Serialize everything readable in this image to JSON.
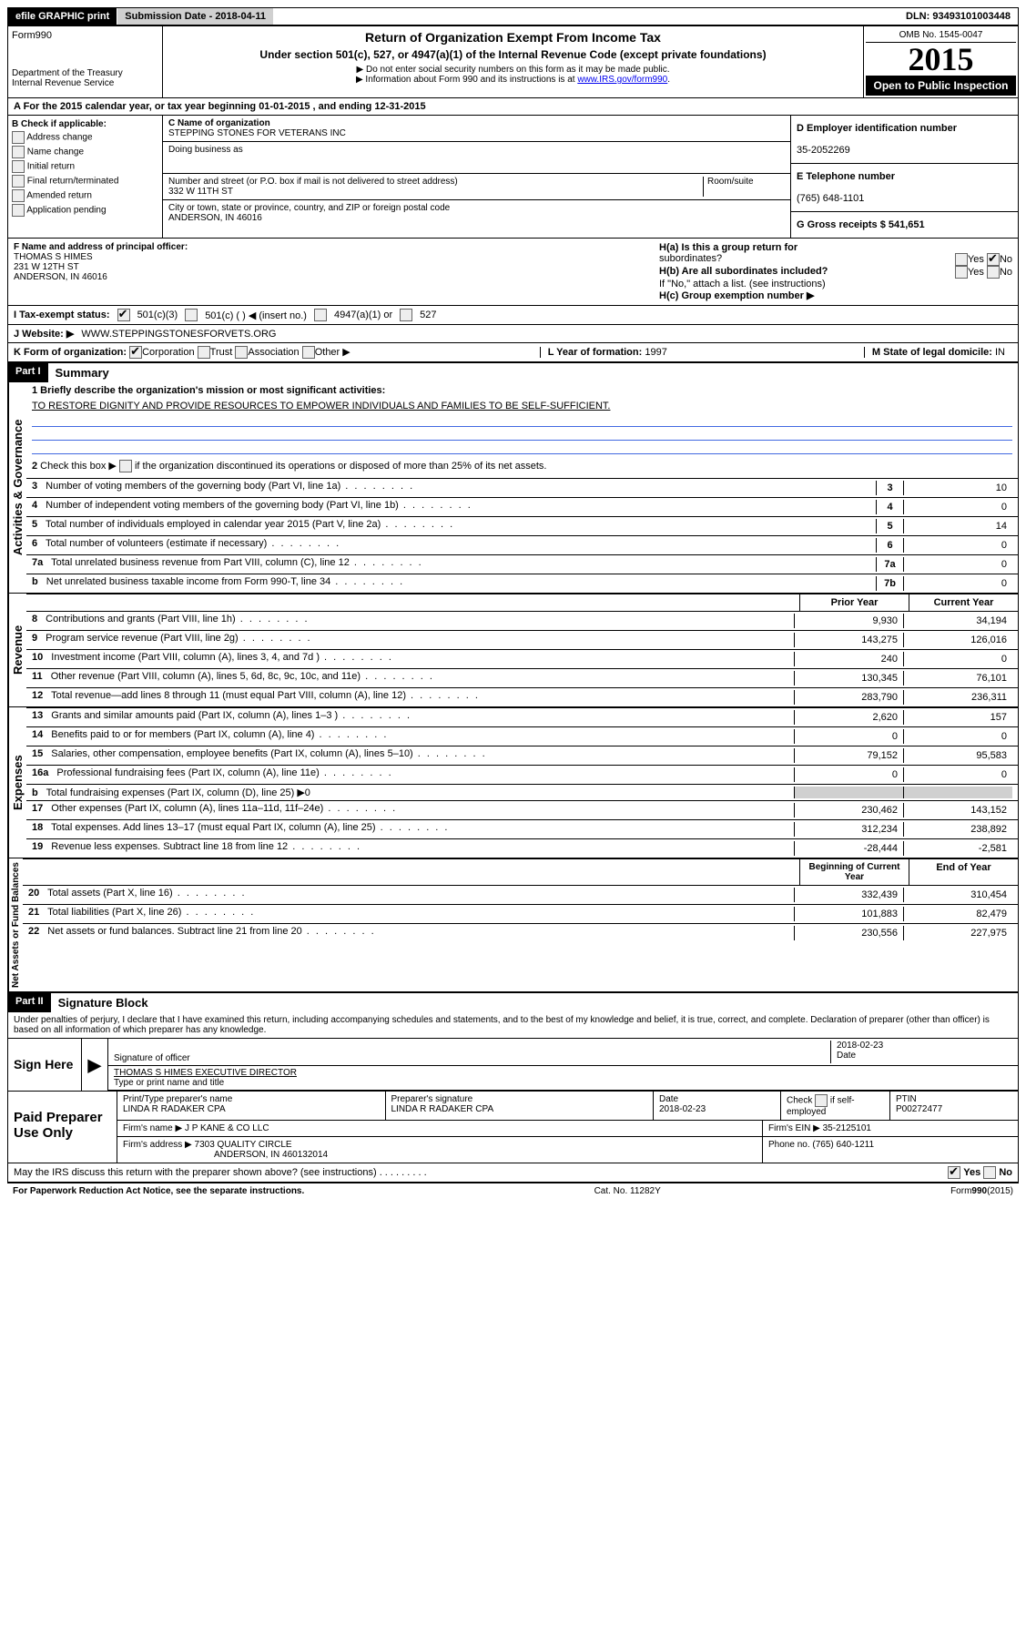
{
  "header": {
    "efile": "efile GRAPHIC print",
    "submission": "Submission Date - 2018-04-11",
    "dln": "DLN: 93493101003448"
  },
  "top": {
    "form": "Form990",
    "title": "Return of Organization Exempt From Income Tax",
    "subtitle": "Under section 501(c), 527, or 4947(a)(1) of the Internal Revenue Code (except private foundations)",
    "note1": "▶ Do not enter social security numbers on this form as it may be made public.",
    "note2": "▶ Information about Form 990 and its instructions is at ",
    "note2link": "www.IRS.gov/form990",
    "dept": "Department of the Treasury",
    "irs": "Internal Revenue Service",
    "omb": "OMB No. 1545-0047",
    "year": "2015",
    "open": "Open to Public Inspection"
  },
  "sectionA": "A  For the 2015 calendar year, or tax year beginning 01-01-2015   , and ending 12-31-2015",
  "sectionB": {
    "check_label": "B Check if applicable:",
    "addr_change": "Address change",
    "name_change": "Name change",
    "initial": "Initial return",
    "final": "Final return/terminated",
    "amended": "Amended return",
    "app_pending": "Application pending",
    "c_name_label": "C Name of organization",
    "c_name": "STEPPING STONES FOR VETERANS INC",
    "dba_label": "Doing business as",
    "street_label": "Number and street (or P.O. box if mail is not delivered to street address)",
    "room_label": "Room/suite",
    "street": "332 W 11TH ST",
    "city_label": "City or town, state or province, country, and ZIP or foreign postal code",
    "city": "ANDERSON, IN  46016",
    "d_ein_label": "D Employer identification number",
    "d_ein": "35-2052269",
    "e_phone_label": "E Telephone number",
    "e_phone": "(765) 648-1101",
    "g_gross": "G Gross receipts $ 541,651"
  },
  "sectionF": {
    "f_label": "F  Name and address of principal officer:",
    "f_name": "THOMAS S HIMES",
    "f_street": "231 W 12TH ST",
    "f_city": "ANDERSON, IN  46016",
    "ha": "H(a)  Is this a group return for",
    "ha2": "subordinates?",
    "hb": "H(b)  Are all subordinates included?",
    "hb_note": "If \"No,\" attach a list. (see instructions)",
    "hc": "H(c)  Group exemption number ▶",
    "yes": "Yes",
    "no": "No"
  },
  "lineI": {
    "label": "I  Tax-exempt status:",
    "opt1": "501(c)(3)",
    "opt2": "501(c) (   ) ◀ (insert no.)",
    "opt3": "4947(a)(1) or",
    "opt4": "527"
  },
  "lineJ": {
    "label": "J  Website: ▶",
    "value": "WWW.STEPPINGSTONESFORVETS.ORG"
  },
  "lineK": {
    "label": "K Form of organization:",
    "corp": "Corporation",
    "trust": "Trust",
    "assoc": "Association",
    "other": "Other ▶",
    "l_label": "L Year of formation:",
    "l_val": "1997",
    "m_label": "M State of legal domicile:",
    "m_val": "IN"
  },
  "part1": {
    "header": "Part I",
    "title": "Summary",
    "line1_label": "1 Briefly describe the organization's mission or most significant activities:",
    "line1_text": "TO RESTORE DIGNITY AND PROVIDE RESOURCES TO EMPOWER INDIVIDUALS AND FAMILIES TO BE SELF-SUFFICIENT.",
    "line2": "2  Check this box ▶       if the organization discontinued its operations or disposed of more than 25% of its net assets.",
    "side1": "Activities & Governance",
    "side2": "Revenue",
    "side3": "Expenses",
    "side4": "Net Assets or Fund Balances",
    "rows_gov": [
      {
        "n": "3",
        "t": "Number of voting members of the governing body (Part VI, line 1a)",
        "rn": "3",
        "v": "10"
      },
      {
        "n": "4",
        "t": "Number of independent voting members of the governing body (Part VI, line 1b)",
        "rn": "4",
        "v": "0"
      },
      {
        "n": "5",
        "t": "Total number of individuals employed in calendar year 2015 (Part V, line 2a)",
        "rn": "5",
        "v": "14"
      },
      {
        "n": "6",
        "t": "Total number of volunteers (estimate if necessary)",
        "rn": "6",
        "v": "0"
      },
      {
        "n": "7a",
        "t": "Total unrelated business revenue from Part VIII, column (C), line 12",
        "rn": "7a",
        "v": "0"
      },
      {
        "n": "b",
        "t": "Net unrelated business taxable income from Form 990-T, line 34",
        "rn": "7b",
        "v": "0"
      }
    ],
    "col_prior": "Prior Year",
    "col_current": "Current Year",
    "rows_rev": [
      {
        "n": "8",
        "t": "Contributions and grants (Part VIII, line 1h)",
        "p": "9,930",
        "c": "34,194"
      },
      {
        "n": "9",
        "t": "Program service revenue (Part VIII, line 2g)",
        "p": "143,275",
        "c": "126,016"
      },
      {
        "n": "10",
        "t": "Investment income (Part VIII, column (A), lines 3, 4, and 7d )",
        "p": "240",
        "c": "0"
      },
      {
        "n": "11",
        "t": "Other revenue (Part VIII, column (A), lines 5, 6d, 8c, 9c, 10c, and 11e)",
        "p": "130,345",
        "c": "76,101"
      },
      {
        "n": "12",
        "t": "Total revenue—add lines 8 through 11 (must equal Part VIII, column (A), line 12)",
        "p": "283,790",
        "c": "236,311"
      }
    ],
    "rows_exp": [
      {
        "n": "13",
        "t": "Grants and similar amounts paid (Part IX, column (A), lines 1–3 )",
        "p": "2,620",
        "c": "157"
      },
      {
        "n": "14",
        "t": "Benefits paid to or for members (Part IX, column (A), line 4)",
        "p": "0",
        "c": "0"
      },
      {
        "n": "15",
        "t": "Salaries, other compensation, employee benefits (Part IX, column (A), lines 5–10)",
        "p": "79,152",
        "c": "95,583"
      },
      {
        "n": "16a",
        "t": "Professional fundraising fees (Part IX, column (A), line 11e)",
        "p": "0",
        "c": "0"
      },
      {
        "n": "b",
        "t": "Total fundraising expenses (Part IX, column (D), line 25) ▶0",
        "p": "",
        "c": "",
        "grey": true
      },
      {
        "n": "17",
        "t": "Other expenses (Part IX, column (A), lines 11a–11d, 11f–24e)",
        "p": "230,462",
        "c": "143,152"
      },
      {
        "n": "18",
        "t": "Total expenses. Add lines 13–17 (must equal Part IX, column (A), line 25)",
        "p": "312,234",
        "c": "238,892"
      },
      {
        "n": "19",
        "t": "Revenue less expenses. Subtract line 18 from line 12",
        "p": "-28,444",
        "c": "-2,581"
      }
    ],
    "col_begin": "Beginning of Current Year",
    "col_end": "End of Year",
    "rows_net": [
      {
        "n": "20",
        "t": "Total assets (Part X, line 16)",
        "p": "332,439",
        "c": "310,454"
      },
      {
        "n": "21",
        "t": "Total liabilities (Part X, line 26)",
        "p": "101,883",
        "c": "82,479"
      },
      {
        "n": "22",
        "t": "Net assets or fund balances. Subtract line 21 from line 20",
        "p": "230,556",
        "c": "227,975"
      }
    ]
  },
  "part2": {
    "header": "Part II",
    "title": "Signature Block",
    "perjury": "Under penalties of perjury, I declare that I have examined this return, including accompanying schedules and statements, and to the best of my knowledge and belief, it is true, correct, and complete. Declaration of preparer (other than officer) is based on all information of which preparer has any knowledge.",
    "sign_here": "Sign Here",
    "sig_officer": "Signature of officer",
    "sig_date": "2018-02-23",
    "date_label": "Date",
    "officer_name": "THOMAS S HIMES EXECUTIVE DIRECTOR",
    "type_label": "Type or print name and title",
    "paid": "Paid Preparer Use Only",
    "prep_name_label": "Print/Type preparer's name",
    "prep_name": "LINDA R RADAKER CPA",
    "prep_sig_label": "Preparer's signature",
    "prep_sig": "LINDA R RADAKER CPA",
    "prep_date": "2018-02-23",
    "check_self": "Check        if self-employed",
    "ptin_label": "PTIN",
    "ptin": "P00272477",
    "firm_name_label": "Firm's name    ▶",
    "firm_name": "J P KANE & CO LLC",
    "firm_ein_label": "Firm's EIN ▶",
    "firm_ein": "35-2125101",
    "firm_addr_label": "Firm's address ▶",
    "firm_addr": "7303 QUALITY CIRCLE",
    "firm_city": "ANDERSON, IN  460132014",
    "firm_phone_label": "Phone no.",
    "firm_phone": "(765) 640-1211",
    "may_irs": "May the IRS discuss this return with the preparer shown above? (see instructions)",
    "yes": "Yes",
    "no": "No"
  },
  "footer": {
    "paperwork": "For Paperwork Reduction Act Notice, see the separate instructions.",
    "cat": "Cat. No. 11282Y",
    "form": "Form990(2015)"
  }
}
